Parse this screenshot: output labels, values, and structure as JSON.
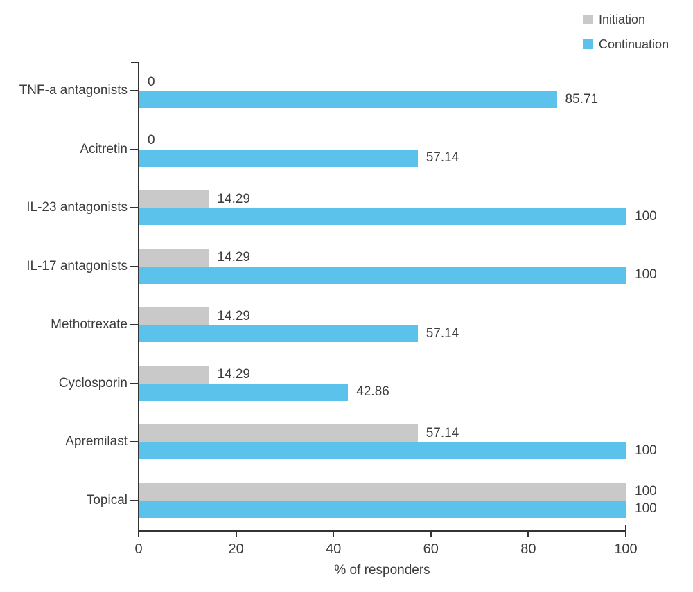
{
  "legend": {
    "position": "top-right",
    "items": [
      {
        "label": "Initiation",
        "color": "#c9c9c9"
      },
      {
        "label": "Continuation",
        "color": "#5bc3eb"
      }
    ]
  },
  "chart_data": {
    "type": "bar",
    "orientation": "horizontal",
    "title": "",
    "xlabel": "% of responders",
    "ylabel": "",
    "xlim": [
      0,
      100
    ],
    "xticks": [
      0,
      20,
      40,
      60,
      80,
      100
    ],
    "grid": false,
    "value_labels": true,
    "legend_position": "top-right",
    "categories": [
      "TNF-a antagonists",
      "Acitretin",
      "IL-23 antagonists",
      "IL-17 antagonists",
      "Methotrexate",
      "Cyclosporin",
      "Apremilast",
      "Topical"
    ],
    "series": [
      {
        "name": "Initiation",
        "color": "#c9c9c9",
        "values": [
          0,
          0,
          14.29,
          14.29,
          14.29,
          14.29,
          57.14,
          100
        ]
      },
      {
        "name": "Continuation",
        "color": "#5bc3eb",
        "values": [
          85.71,
          57.14,
          100,
          100,
          57.14,
          42.86,
          100,
          100
        ]
      }
    ]
  },
  "colors": {
    "axis": "#333333",
    "text": "#3c3c3c",
    "background": "#ffffff"
  }
}
